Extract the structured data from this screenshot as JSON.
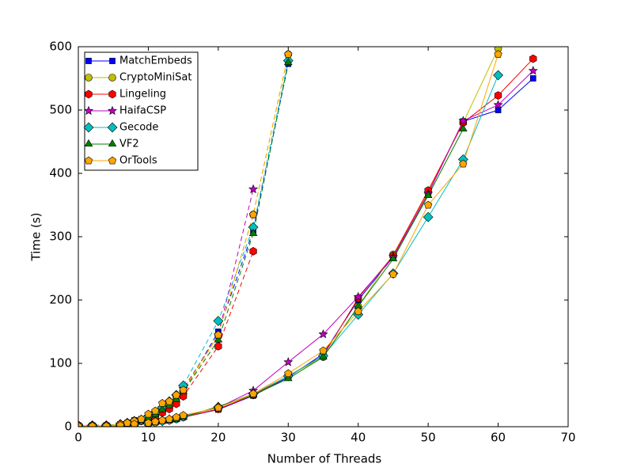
{
  "chart_data": {
    "type": "line",
    "x_label": "Number of Threads",
    "y_label": "Time (s)",
    "x": [
      0,
      2,
      4,
      6,
      8,
      10,
      11,
      12,
      13,
      14,
      15,
      20,
      25,
      30,
      35,
      40,
      45,
      50,
      55,
      60,
      65
    ],
    "x_dashed": [
      0,
      2,
      4,
      6,
      7,
      8,
      9,
      10,
      11,
      12,
      13,
      14,
      15,
      20,
      25,
      30
    ],
    "xlim": [
      0,
      70
    ],
    "xticks": [
      0,
      10,
      20,
      30,
      40,
      50,
      60,
      70
    ],
    "ylim": [
      0,
      600
    ],
    "yticks": [
      0,
      100,
      200,
      300,
      400,
      500,
      600
    ],
    "grid": false,
    "legend": "upper left",
    "series": [
      {
        "name": "MatchEmbeds",
        "color": "#0000ff",
        "marker": "square",
        "values": [
          1,
          1,
          1,
          2,
          3,
          5,
          7,
          9,
          10,
          12,
          15,
          27,
          49,
          78,
          115,
          200,
          268,
          368,
          482,
          500,
          550
        ],
        "values_dashed": [
          2,
          2,
          2,
          4,
          6,
          10,
          12,
          16,
          20,
          28,
          35,
          45,
          55,
          150,
          310,
          573
        ]
      },
      {
        "name": "CryptoMiniSat",
        "color": "#bfbf00",
        "marker": "circle",
        "values": [
          1,
          1,
          1,
          2,
          3,
          5,
          7,
          9,
          10,
          12,
          15,
          28,
          50,
          80,
          110,
          190,
          272,
          370,
          480,
          597,
          null
        ],
        "values_dashed": [
          2,
          2,
          2,
          4,
          6,
          8,
          10,
          15,
          20,
          28,
          35,
          45,
          55,
          145,
          335,
          588
        ]
      },
      {
        "name": "Lingeling",
        "color": "#ff0000",
        "marker": "hexagon",
        "values": [
          1,
          1,
          1,
          2,
          3,
          5,
          7,
          9,
          11,
          13,
          15,
          28,
          50,
          80,
          112,
          203,
          270,
          373,
          480,
          523,
          581
        ],
        "values_dashed": [
          2,
          2,
          2,
          3,
          5,
          7,
          9,
          12,
          16,
          22,
          28,
          36,
          48,
          127,
          277,
          null
        ]
      },
      {
        "name": "HaifaCSP",
        "color": "#bf00bf",
        "marker": "star",
        "values": [
          1,
          1,
          1,
          2,
          3,
          6,
          8,
          10,
          12,
          14,
          17,
          30,
          57,
          102,
          146,
          205,
          268,
          368,
          483,
          508,
          562
        ],
        "values_dashed": [
          2,
          2,
          2,
          4,
          6,
          9,
          11,
          16,
          22,
          30,
          38,
          48,
          60,
          145,
          375,
          null
        ]
      },
      {
        "name": "Gecode",
        "color": "#00bfbf",
        "marker": "diamond",
        "values": [
          1,
          1,
          1,
          2,
          3,
          5,
          7,
          9,
          11,
          13,
          16,
          31,
          52,
          80,
          112,
          177,
          242,
          331,
          422,
          555,
          null
        ],
        "values_dashed": [
          2,
          2,
          2,
          4,
          6,
          9,
          11,
          16,
          22,
          30,
          40,
          50,
          65,
          167,
          315,
          578
        ]
      },
      {
        "name": "VF2",
        "color": "#007f00",
        "marker": "triangle",
        "values": [
          1,
          1,
          1,
          2,
          3,
          5,
          7,
          9,
          10,
          12,
          15,
          32,
          50,
          76,
          110,
          190,
          265,
          365,
          470,
          null,
          null
        ],
        "values_dashed": [
          2,
          2,
          2,
          4,
          6,
          8,
          10,
          14,
          19,
          27,
          33,
          43,
          55,
          137,
          305,
          575
        ]
      },
      {
        "name": "OrTools",
        "color": "#ffa500",
        "marker": "pentagon",
        "values": [
          1,
          1,
          1,
          2,
          4,
          6,
          8,
          10,
          12,
          15,
          18,
          30,
          52,
          84,
          120,
          182,
          241,
          350,
          415,
          588,
          null
        ],
        "values_dashed": [
          2,
          2,
          2,
          4,
          6,
          9,
          12,
          20,
          25,
          37,
          40,
          50,
          58,
          145,
          335,
          588
        ]
      }
    ]
  }
}
